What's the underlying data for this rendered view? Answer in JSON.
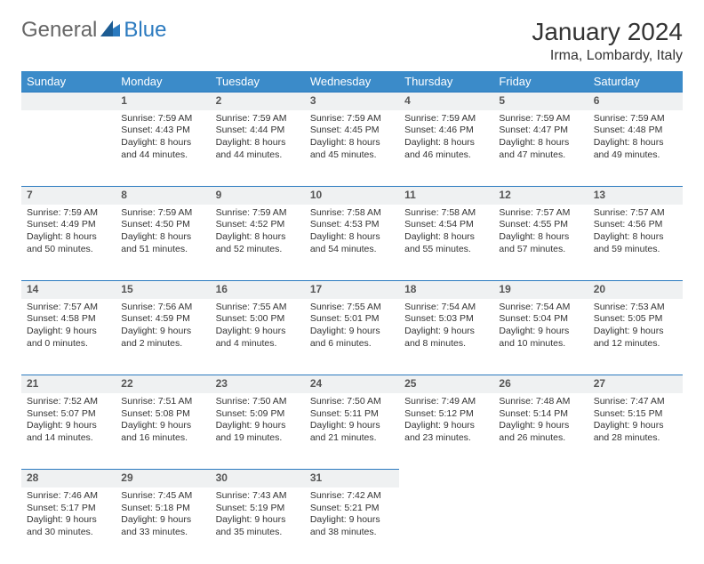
{
  "logo": {
    "text1": "General",
    "text2": "Blue"
  },
  "title": "January 2024",
  "location": "Irma, Lombardy, Italy",
  "colors": {
    "header_bg": "#3b8bc9",
    "header_text": "#ffffff",
    "daynum_bg": "#eff1f2",
    "daynum_border": "#2b7abf",
    "text": "#333333",
    "logo_gray": "#666666",
    "logo_blue": "#2b7abf"
  },
  "weekdays": [
    "Sunday",
    "Monday",
    "Tuesday",
    "Wednesday",
    "Thursday",
    "Friday",
    "Saturday"
  ],
  "weeks": [
    [
      null,
      {
        "n": "1",
        "sunrise": "7:59 AM",
        "sunset": "4:43 PM",
        "dl": "8 hours and 44 minutes."
      },
      {
        "n": "2",
        "sunrise": "7:59 AM",
        "sunset": "4:44 PM",
        "dl": "8 hours and 44 minutes."
      },
      {
        "n": "3",
        "sunrise": "7:59 AM",
        "sunset": "4:45 PM",
        "dl": "8 hours and 45 minutes."
      },
      {
        "n": "4",
        "sunrise": "7:59 AM",
        "sunset": "4:46 PM",
        "dl": "8 hours and 46 minutes."
      },
      {
        "n": "5",
        "sunrise": "7:59 AM",
        "sunset": "4:47 PM",
        "dl": "8 hours and 47 minutes."
      },
      {
        "n": "6",
        "sunrise": "7:59 AM",
        "sunset": "4:48 PM",
        "dl": "8 hours and 49 minutes."
      }
    ],
    [
      {
        "n": "7",
        "sunrise": "7:59 AM",
        "sunset": "4:49 PM",
        "dl": "8 hours and 50 minutes."
      },
      {
        "n": "8",
        "sunrise": "7:59 AM",
        "sunset": "4:50 PM",
        "dl": "8 hours and 51 minutes."
      },
      {
        "n": "9",
        "sunrise": "7:59 AM",
        "sunset": "4:52 PM",
        "dl": "8 hours and 52 minutes."
      },
      {
        "n": "10",
        "sunrise": "7:58 AM",
        "sunset": "4:53 PM",
        "dl": "8 hours and 54 minutes."
      },
      {
        "n": "11",
        "sunrise": "7:58 AM",
        "sunset": "4:54 PM",
        "dl": "8 hours and 55 minutes."
      },
      {
        "n": "12",
        "sunrise": "7:57 AM",
        "sunset": "4:55 PM",
        "dl": "8 hours and 57 minutes."
      },
      {
        "n": "13",
        "sunrise": "7:57 AM",
        "sunset": "4:56 PM",
        "dl": "8 hours and 59 minutes."
      }
    ],
    [
      {
        "n": "14",
        "sunrise": "7:57 AM",
        "sunset": "4:58 PM",
        "dl": "9 hours and 0 minutes."
      },
      {
        "n": "15",
        "sunrise": "7:56 AM",
        "sunset": "4:59 PM",
        "dl": "9 hours and 2 minutes."
      },
      {
        "n": "16",
        "sunrise": "7:55 AM",
        "sunset": "5:00 PM",
        "dl": "9 hours and 4 minutes."
      },
      {
        "n": "17",
        "sunrise": "7:55 AM",
        "sunset": "5:01 PM",
        "dl": "9 hours and 6 minutes."
      },
      {
        "n": "18",
        "sunrise": "7:54 AM",
        "sunset": "5:03 PM",
        "dl": "9 hours and 8 minutes."
      },
      {
        "n": "19",
        "sunrise": "7:54 AM",
        "sunset": "5:04 PM",
        "dl": "9 hours and 10 minutes."
      },
      {
        "n": "20",
        "sunrise": "7:53 AM",
        "sunset": "5:05 PM",
        "dl": "9 hours and 12 minutes."
      }
    ],
    [
      {
        "n": "21",
        "sunrise": "7:52 AM",
        "sunset": "5:07 PM",
        "dl": "9 hours and 14 minutes."
      },
      {
        "n": "22",
        "sunrise": "7:51 AM",
        "sunset": "5:08 PM",
        "dl": "9 hours and 16 minutes."
      },
      {
        "n": "23",
        "sunrise": "7:50 AM",
        "sunset": "5:09 PM",
        "dl": "9 hours and 19 minutes."
      },
      {
        "n": "24",
        "sunrise": "7:50 AM",
        "sunset": "5:11 PM",
        "dl": "9 hours and 21 minutes."
      },
      {
        "n": "25",
        "sunrise": "7:49 AM",
        "sunset": "5:12 PM",
        "dl": "9 hours and 23 minutes."
      },
      {
        "n": "26",
        "sunrise": "7:48 AM",
        "sunset": "5:14 PM",
        "dl": "9 hours and 26 minutes."
      },
      {
        "n": "27",
        "sunrise": "7:47 AM",
        "sunset": "5:15 PM",
        "dl": "9 hours and 28 minutes."
      }
    ],
    [
      {
        "n": "28",
        "sunrise": "7:46 AM",
        "sunset": "5:17 PM",
        "dl": "9 hours and 30 minutes."
      },
      {
        "n": "29",
        "sunrise": "7:45 AM",
        "sunset": "5:18 PM",
        "dl": "9 hours and 33 minutes."
      },
      {
        "n": "30",
        "sunrise": "7:43 AM",
        "sunset": "5:19 PM",
        "dl": "9 hours and 35 minutes."
      },
      {
        "n": "31",
        "sunrise": "7:42 AM",
        "sunset": "5:21 PM",
        "dl": "9 hours and 38 minutes."
      },
      null,
      null,
      null
    ]
  ],
  "labels": {
    "sunrise": "Sunrise:",
    "sunset": "Sunset:",
    "daylight": "Daylight:"
  }
}
